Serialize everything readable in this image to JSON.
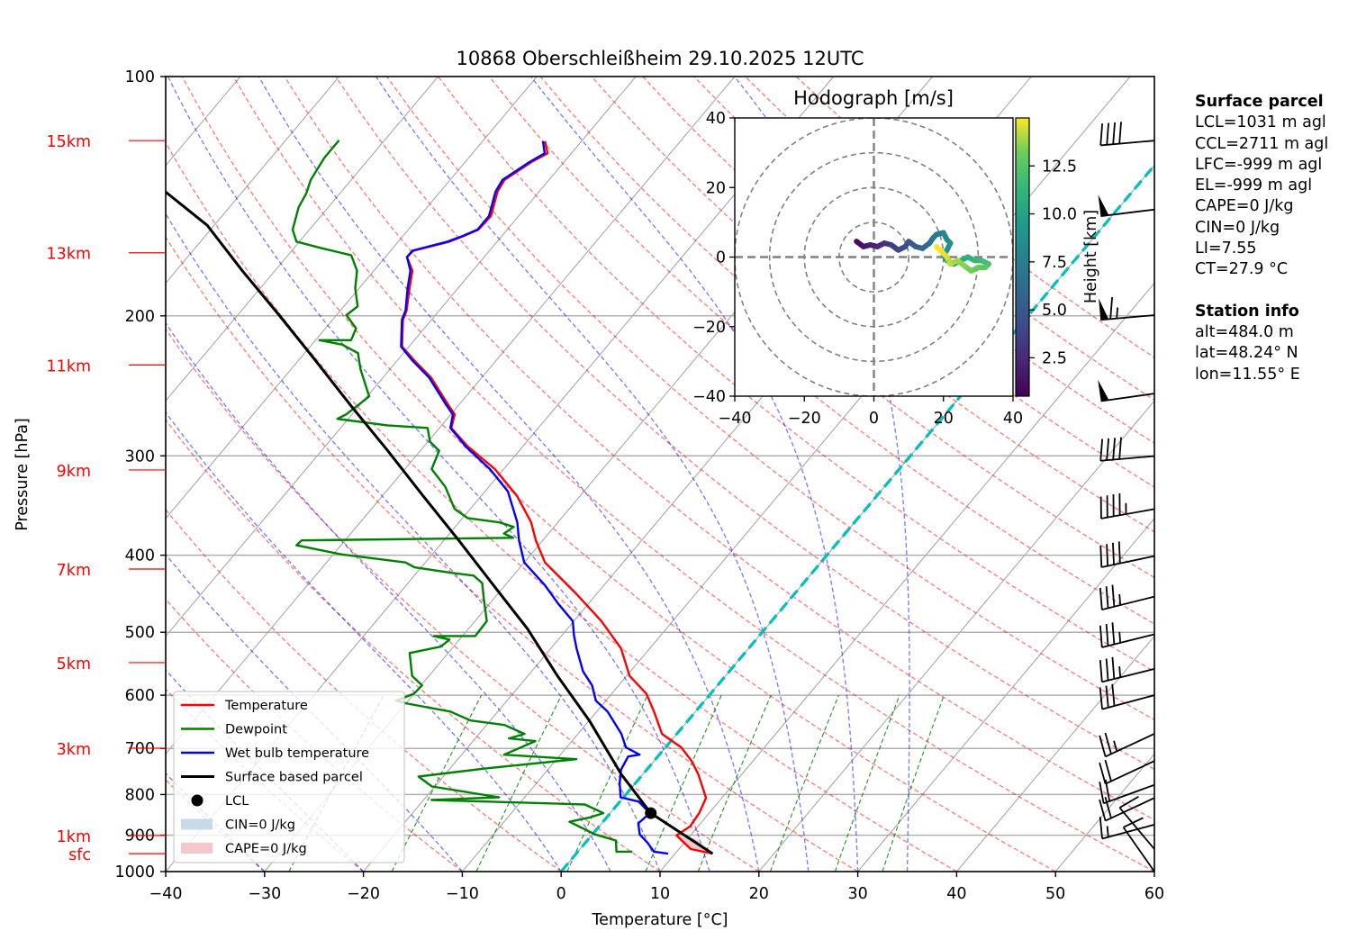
{
  "chart_data": {
    "type": "line",
    "title": "10868 Oberschleißheim 29.10.2025 12UTC",
    "xlabel": "Temperature [°C]",
    "ylabel": "Pressure [hPa]",
    "xlim": [
      -40,
      60
    ],
    "ylim": [
      1000,
      100
    ],
    "yscale": "log",
    "skew": "skew-T log-p",
    "grid": true,
    "xticks": [
      "−40",
      "−30",
      "−20",
      "−10",
      "0",
      "10",
      "20",
      "30",
      "40",
      "50",
      "60"
    ],
    "xtick_values": [
      -40,
      -30,
      -20,
      -10,
      0,
      10,
      20,
      30,
      40,
      50,
      60
    ],
    "yticks": [
      "100",
      "200",
      "300",
      "400",
      "500",
      "600",
      "700",
      "800",
      "900",
      "1000"
    ],
    "ytick_values": [
      100,
      200,
      300,
      400,
      500,
      600,
      700,
      800,
      900,
      1000
    ],
    "altitude_labels": [
      {
        "label": "15km",
        "p": 120.4
      },
      {
        "label": "13km",
        "p": 166.6
      },
      {
        "label": "11km",
        "p": 230.6
      },
      {
        "label": "9km",
        "p": 312.5
      },
      {
        "label": "7km",
        "p": 416.4
      },
      {
        "label": "5km",
        "p": 546.0
      },
      {
        "label": "3km",
        "p": 699.6
      },
      {
        "label": "1km",
        "p": 900.7
      },
      {
        "label": "sfc",
        "p": 949.5
      }
    ],
    "series": [
      {
        "name": "Temperature",
        "color": "#ff0000",
        "p": [
          120.6,
          124.9,
          128.1,
          131.5,
          134.9,
          139.6,
          149.8,
          155.8,
          158.8,
          161.3,
          165.6,
          168.7,
          175.5,
          184.6,
          197.0,
          202.2,
          218.6,
          227.5,
          239.3,
          259.2,
          266.1,
          276.7,
          291.8,
          311.7,
          336.8,
          363.8,
          383.2,
          408.5,
          447.8,
          484.2,
          524.0,
          567.4,
          597.3,
          629.2,
          671.2,
          697.9,
          725.9,
          754.3,
          808.0,
          844.3,
          877.5,
          900.7,
          937.0,
          949.5
        ],
        "T": [
          -63.7,
          -62.4,
          -63.3,
          -63.9,
          -64.5,
          -64.2,
          -62.8,
          -62.9,
          -63.9,
          -64.8,
          -67.7,
          -67.8,
          -66.1,
          -64.9,
          -63.3,
          -62.9,
          -60.7,
          -58.3,
          -55.1,
          -51.0,
          -49.6,
          -48.8,
          -45.6,
          -40.9,
          -36.4,
          -32.7,
          -30.7,
          -27.9,
          -22.0,
          -17.2,
          -12.9,
          -9.7,
          -6.5,
          -4.2,
          -1.5,
          1.6,
          3.8,
          5.6,
          8.4,
          9.0,
          9.2,
          8.6,
          11.2,
          13.8
        ]
      },
      {
        "name": "Dewpoint",
        "color": "#008000",
        "p": [
          120.3,
          126.5,
          134.9,
          140.3,
          146.0,
          155.8,
          161.3,
          164.2,
          167.8,
          175.5,
          184.6,
          194.6,
          199.6,
          207.4,
          214.6,
          214.6,
          217.4,
          222.8,
          233.3,
          252.5,
          257.8,
          266.1,
          269.5,
          274.6,
          276.7,
          287.9,
          295.6,
          311.7,
          328.2,
          349.8,
          359.2,
          363.8,
          368.5,
          375.7,
          380.3,
          383.2,
          388.7,
          399.0,
          408.5,
          414.3,
          421.0,
          424.4,
          433.7,
          453.9,
          484.2,
          505.5,
          505.5,
          510.8,
          521.3,
          531.0,
          567.4,
          583.1,
          597.3,
          609.8,
          614.8,
          629.2,
          645.6,
          654.0,
          671.2,
          680.0,
          685.4,
          712.9,
          722.2,
          741.7,
          759.4,
          781.5,
          806.4,
          812.7,
          823.5,
          844.3,
          855.0,
          865.6,
          898.2,
          914.0,
          944.0,
          944.0
        ],
        "T": [
          -84.6,
          -84.6,
          -84.1,
          -83.4,
          -83.0,
          -81.7,
          -80.3,
          -77.4,
          -73.6,
          -71.7,
          -70.4,
          -68.6,
          -69.0,
          -66.9,
          -66.4,
          -69.6,
          -66.9,
          -64.6,
          -63.0,
          -59.8,
          -60.1,
          -60.6,
          -61.1,
          -55.5,
          -51.2,
          -49.8,
          -48.1,
          -47.3,
          -44.4,
          -41.6,
          -39.5,
          -35.9,
          -34.1,
          -34.5,
          -33.2,
          -54.4,
          -54.5,
          -49.2,
          -42.0,
          -40.7,
          -36.5,
          -34.0,
          -32.5,
          -31.0,
          -28.8,
          -28.7,
          -32.9,
          -31.0,
          -31.3,
          -33.9,
          -31.7,
          -29.9,
          -30.0,
          -31.2,
          -29.8,
          -24.8,
          -22.0,
          -18.2,
          -15.4,
          -16.6,
          -13.7,
          -15.7,
          -8.0,
          -16.4,
          -22.5,
          -20.3,
          -12.6,
          -19.2,
          -3.3,
          -0.7,
          -1.7,
          -3.4,
          0.3,
          2.9,
          3.9,
          5.5
        ]
      },
      {
        "name": "Wet bulb temperature",
        "color": "#0000ff",
        "p": [
          120.6,
          124.9,
          128.1,
          131.5,
          134.9,
          139.6,
          149.8,
          155.8,
          158.8,
          161.3,
          165.6,
          168.7,
          175.5,
          184.6,
          197.0,
          202.2,
          218.6,
          227.5,
          239.3,
          259.2,
          266.1,
          276.7,
          291.8,
          311.7,
          332.5,
          363.8,
          383.2,
          408.5,
          436.2,
          460.0,
          484.2,
          504.2,
          524.0,
          560.0,
          583.1,
          609.8,
          629.2,
          671.2,
          697.9,
          712.9,
          716.6,
          744.7,
          774.0,
          806.4,
          816.6,
          844.3,
          869.8,
          898.2,
          920.1,
          944.0,
          949.5
        ],
        "T": [
          -63.9,
          -62.7,
          -63.5,
          -64.1,
          -64.7,
          -64.4,
          -63.0,
          -63.0,
          -64.0,
          -65.0,
          -67.8,
          -67.8,
          -66.3,
          -65.1,
          -63.4,
          -63.0,
          -60.8,
          -58.5,
          -55.3,
          -51.2,
          -49.8,
          -48.9,
          -45.8,
          -41.4,
          -37.7,
          -34.1,
          -32.4,
          -30.0,
          -26.0,
          -23.1,
          -20.1,
          -18.8,
          -17.4,
          -14.8,
          -12.7,
          -11.0,
          -8.9,
          -5.6,
          -4.0,
          -2.0,
          -3.0,
          -2.6,
          -1.6,
          -0.3,
          1.9,
          4.0,
          3.7,
          4.8,
          6.3,
          7.7,
          9.3
        ]
      },
      {
        "name": "Surface based parcel",
        "color": "#000000",
        "p": [
          949.5,
          844.3,
          754.3,
          645.6,
          567.4,
          495.4,
          436.2,
          383.2,
          336.8,
          295.0,
          259.2,
          227.5,
          199.6,
          175.5,
          153.9,
          139.6
        ],
        "T": [
          13.8,
          4.1,
          -2.2,
          -10.0,
          -17.0,
          -24.0,
          -31.2,
          -38.5,
          -45.9,
          -53.4,
          -60.9,
          -68.3,
          -75.8,
          -83.3,
          -90.7,
          -97.8
        ]
      }
    ],
    "lcl": {
      "name": "LCL",
      "p": 844.3,
      "T": 4.1
    },
    "freezing_level_isotherm_C": 0,
    "legend": {
      "location": "lower-left",
      "entries": [
        {
          "label": "Temperature",
          "kind": "line",
          "color": "#ff0000"
        },
        {
          "label": "Dewpoint",
          "kind": "line",
          "color": "#008000"
        },
        {
          "label": "Wet bulb temperature",
          "kind": "line",
          "color": "#0000ff"
        },
        {
          "label": "Surface based parcel",
          "kind": "line",
          "color": "#000000"
        },
        {
          "label": "LCL",
          "kind": "dot",
          "color": "#000000"
        },
        {
          "label": "CIN=0 J/kg",
          "kind": "patch",
          "color": "#c6dbea"
        },
        {
          "label": "CAPE=0 J/kg",
          "kind": "patch",
          "color": "#f4c7ca"
        }
      ]
    },
    "wind_barbs": {
      "units": "kt",
      "levels": [
        {
          "p": 120.4,
          "dir": 265,
          "speed": 40
        },
        {
          "p": 147.0,
          "dir": 263,
          "speed": 50
        },
        {
          "p": 199.6,
          "dir": 265,
          "speed": 65
        },
        {
          "p": 250.5,
          "dir": 262,
          "speed": 50
        },
        {
          "p": 300.2,
          "dir": 265,
          "speed": 40
        },
        {
          "p": 350.0,
          "dir": 260,
          "speed": 45
        },
        {
          "p": 401.0,
          "dir": 258,
          "speed": 40
        },
        {
          "p": 451.0,
          "dir": 256,
          "speed": 35
        },
        {
          "p": 503.0,
          "dir": 256,
          "speed": 35
        },
        {
          "p": 556.0,
          "dir": 256,
          "speed": 35
        },
        {
          "p": 600.0,
          "dir": 255,
          "speed": 30
        },
        {
          "p": 671.0,
          "dir": 245,
          "speed": 25
        },
        {
          "p": 726.0,
          "dir": 245,
          "speed": 20
        },
        {
          "p": 778.0,
          "dir": 250,
          "speed": 20
        },
        {
          "p": 808.0,
          "dir": 245,
          "speed": 20
        },
        {
          "p": 873.0,
          "dir": 255,
          "speed": 15
        },
        {
          "p": 937.0,
          "dir": 320,
          "speed": 10
        },
        {
          "p": 1000.0,
          "dir": 325,
          "speed": 10
        }
      ]
    },
    "hodograph": {
      "title": "Hodograph [m/s]",
      "xlim": [
        -40,
        40
      ],
      "ylim": [
        -40,
        40
      ],
      "xticks": [
        "−40",
        "−20",
        "0",
        "20",
        "40"
      ],
      "xtick_values": [
        -40,
        -20,
        0,
        20,
        40
      ],
      "yticks": [
        "40",
        "20",
        "0",
        "−20",
        "−40"
      ],
      "ytick_values": [
        40,
        20,
        0,
        -20,
        -40
      ],
      "rings": [
        10,
        20,
        30,
        40
      ],
      "colorbar": {
        "label": "Height [km]",
        "ticks": [
          "2.5",
          "5.0",
          "7.5",
          "10.0",
          "12.5"
        ],
        "tick_values": [
          2.5,
          5.0,
          7.5,
          10.0,
          12.5
        ],
        "range": [
          0.5,
          15.0
        ],
        "colormap": "viridis"
      },
      "u": [
        -5,
        -3,
        -1,
        1,
        3,
        5,
        7,
        9,
        10,
        12,
        14,
        16,
        17,
        18,
        20,
        21,
        22,
        21,
        20,
        21,
        23,
        25,
        27,
        29,
        31,
        33,
        32,
        30,
        28,
        26,
        24,
        22,
        21,
        20,
        19,
        18
      ],
      "v": [
        4.5,
        3,
        3.5,
        3,
        4,
        3.5,
        2,
        3,
        4.5,
        3,
        2.5,
        4,
        5.5,
        6.5,
        7,
        5,
        4,
        2,
        0.5,
        -1,
        -2,
        -1,
        0,
        -1,
        -1,
        -2,
        -3,
        -3,
        -4,
        -2.5,
        -1,
        -2,
        0,
        1,
        2,
        3
      ],
      "height_km": [
        0.5,
        1.0,
        1.5,
        2.0,
        2.5,
        3.0,
        3.5,
        4.0,
        4.5,
        5.0,
        5.5,
        6.0,
        6.5,
        7.0,
        7.5,
        8.0,
        8.3,
        8.6,
        9.0,
        9.4,
        9.8,
        10.2,
        10.6,
        11.0,
        11.4,
        11.8,
        12.2,
        12.6,
        13.0,
        13.3,
        13.6,
        13.9,
        14.2,
        14.5,
        14.8,
        15.0
      ]
    }
  },
  "info": {
    "surface_header": "Surface parcel",
    "surface_lines": [
      "LCL=1031 m agl",
      "CCL=2711 m agl",
      "LFC=-999 m agl",
      "EL=-999 m agl",
      "CAPE=0 J/kg",
      "CIN=0 J/kg",
      "LI=7.55",
      "CT=27.9 °C"
    ],
    "station_header": "Station info",
    "station_lines": [
      "alt=484.0 m",
      "lat=48.24° N",
      "lon=11.55° E"
    ]
  }
}
